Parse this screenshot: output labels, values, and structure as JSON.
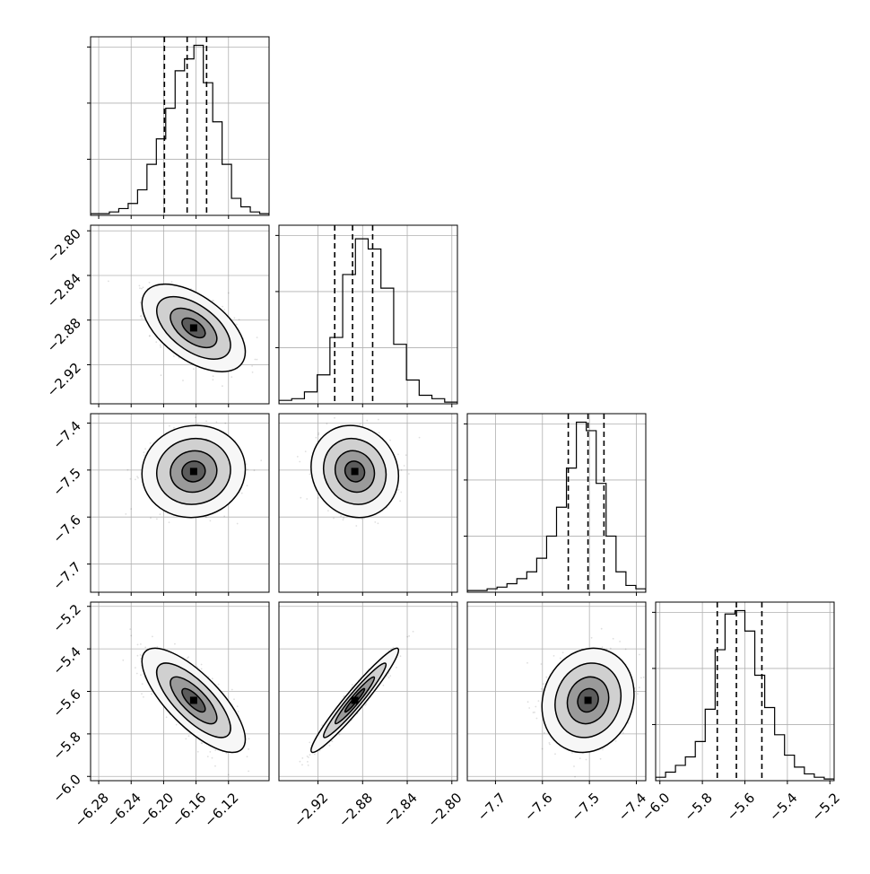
{
  "chart_data": {
    "type": "corner",
    "grid": true,
    "variables": [
      {
        "range": [
          -6.29,
          -6.07
        ],
        "ticks": [
          -6.28,
          -6.24,
          -6.2,
          -6.16,
          -6.12
        ],
        "tick_labels": [
          "−6.28",
          "−6.24",
          "−6.20",
          "−6.16",
          "−6.12"
        ],
        "mean": -6.163,
        "sd": 0.026,
        "quantiles": [
          -6.199,
          -6.171,
          -6.147
        ],
        "hist": [
          0.01,
          0.01,
          0.02,
          0.04,
          0.07,
          0.15,
          0.3,
          0.45,
          0.63,
          0.85,
          0.92,
          1.0,
          0.78,
          0.55,
          0.3,
          0.1,
          0.05,
          0.02,
          0.01
        ]
      },
      {
        "range": [
          -2.955,
          -2.795
        ],
        "ticks": [
          -2.92,
          -2.88,
          -2.84,
          -2.8
        ],
        "tick_labels": [
          "−2.92",
          "−2.88",
          "−2.84",
          "−2.80"
        ],
        "mean": -2.887,
        "sd": 0.016,
        "quantiles": [
          -2.905,
          -2.889,
          -2.871
        ],
        "hist": [
          0.02,
          0.03,
          0.07,
          0.17,
          0.39,
          0.76,
          0.97,
          0.91,
          0.68,
          0.35,
          0.14,
          0.05,
          0.03,
          0.01
        ]
      },
      {
        "range": [
          -7.76,
          -7.38
        ],
        "ticks": [
          -7.7,
          -7.6,
          -7.5,
          -7.4
        ],
        "tick_labels": [
          "−7.7",
          "−7.6",
          "−7.5",
          "−7.4"
        ],
        "mean": -7.503,
        "sd": 0.04,
        "quantiles": [
          -7.545,
          -7.503,
          -7.469
        ],
        "hist": [
          0.01,
          0.01,
          0.02,
          0.03,
          0.05,
          0.08,
          0.12,
          0.2,
          0.33,
          0.5,
          0.73,
          1.0,
          0.95,
          0.64,
          0.33,
          0.12,
          0.04,
          0.02
        ]
      },
      {
        "range": [
          -6.02,
          -5.18
        ],
        "ticks": [
          -6.0,
          -5.8,
          -5.6,
          -5.4,
          -5.2
        ],
        "tick_labels": [
          "−6.0",
          "−5.8",
          "−5.6",
          "−5.4",
          "−5.2"
        ],
        "mean": -5.642,
        "sd": 0.1,
        "quantiles": [
          -5.73,
          -5.64,
          -5.52
        ],
        "hist": [
          0.02,
          0.05,
          0.09,
          0.14,
          0.23,
          0.42,
          0.77,
          0.98,
          1.0,
          0.88,
          0.62,
          0.43,
          0.27,
          0.15,
          0.08,
          0.04,
          0.02,
          0.01
        ]
      }
    ],
    "correlations": {
      "1,0": -0.55,
      "2,0": 0.05,
      "2,1": -0.1,
      "3,0": -0.75,
      "3,1": 0.96,
      "3,2": 0.12
    }
  }
}
